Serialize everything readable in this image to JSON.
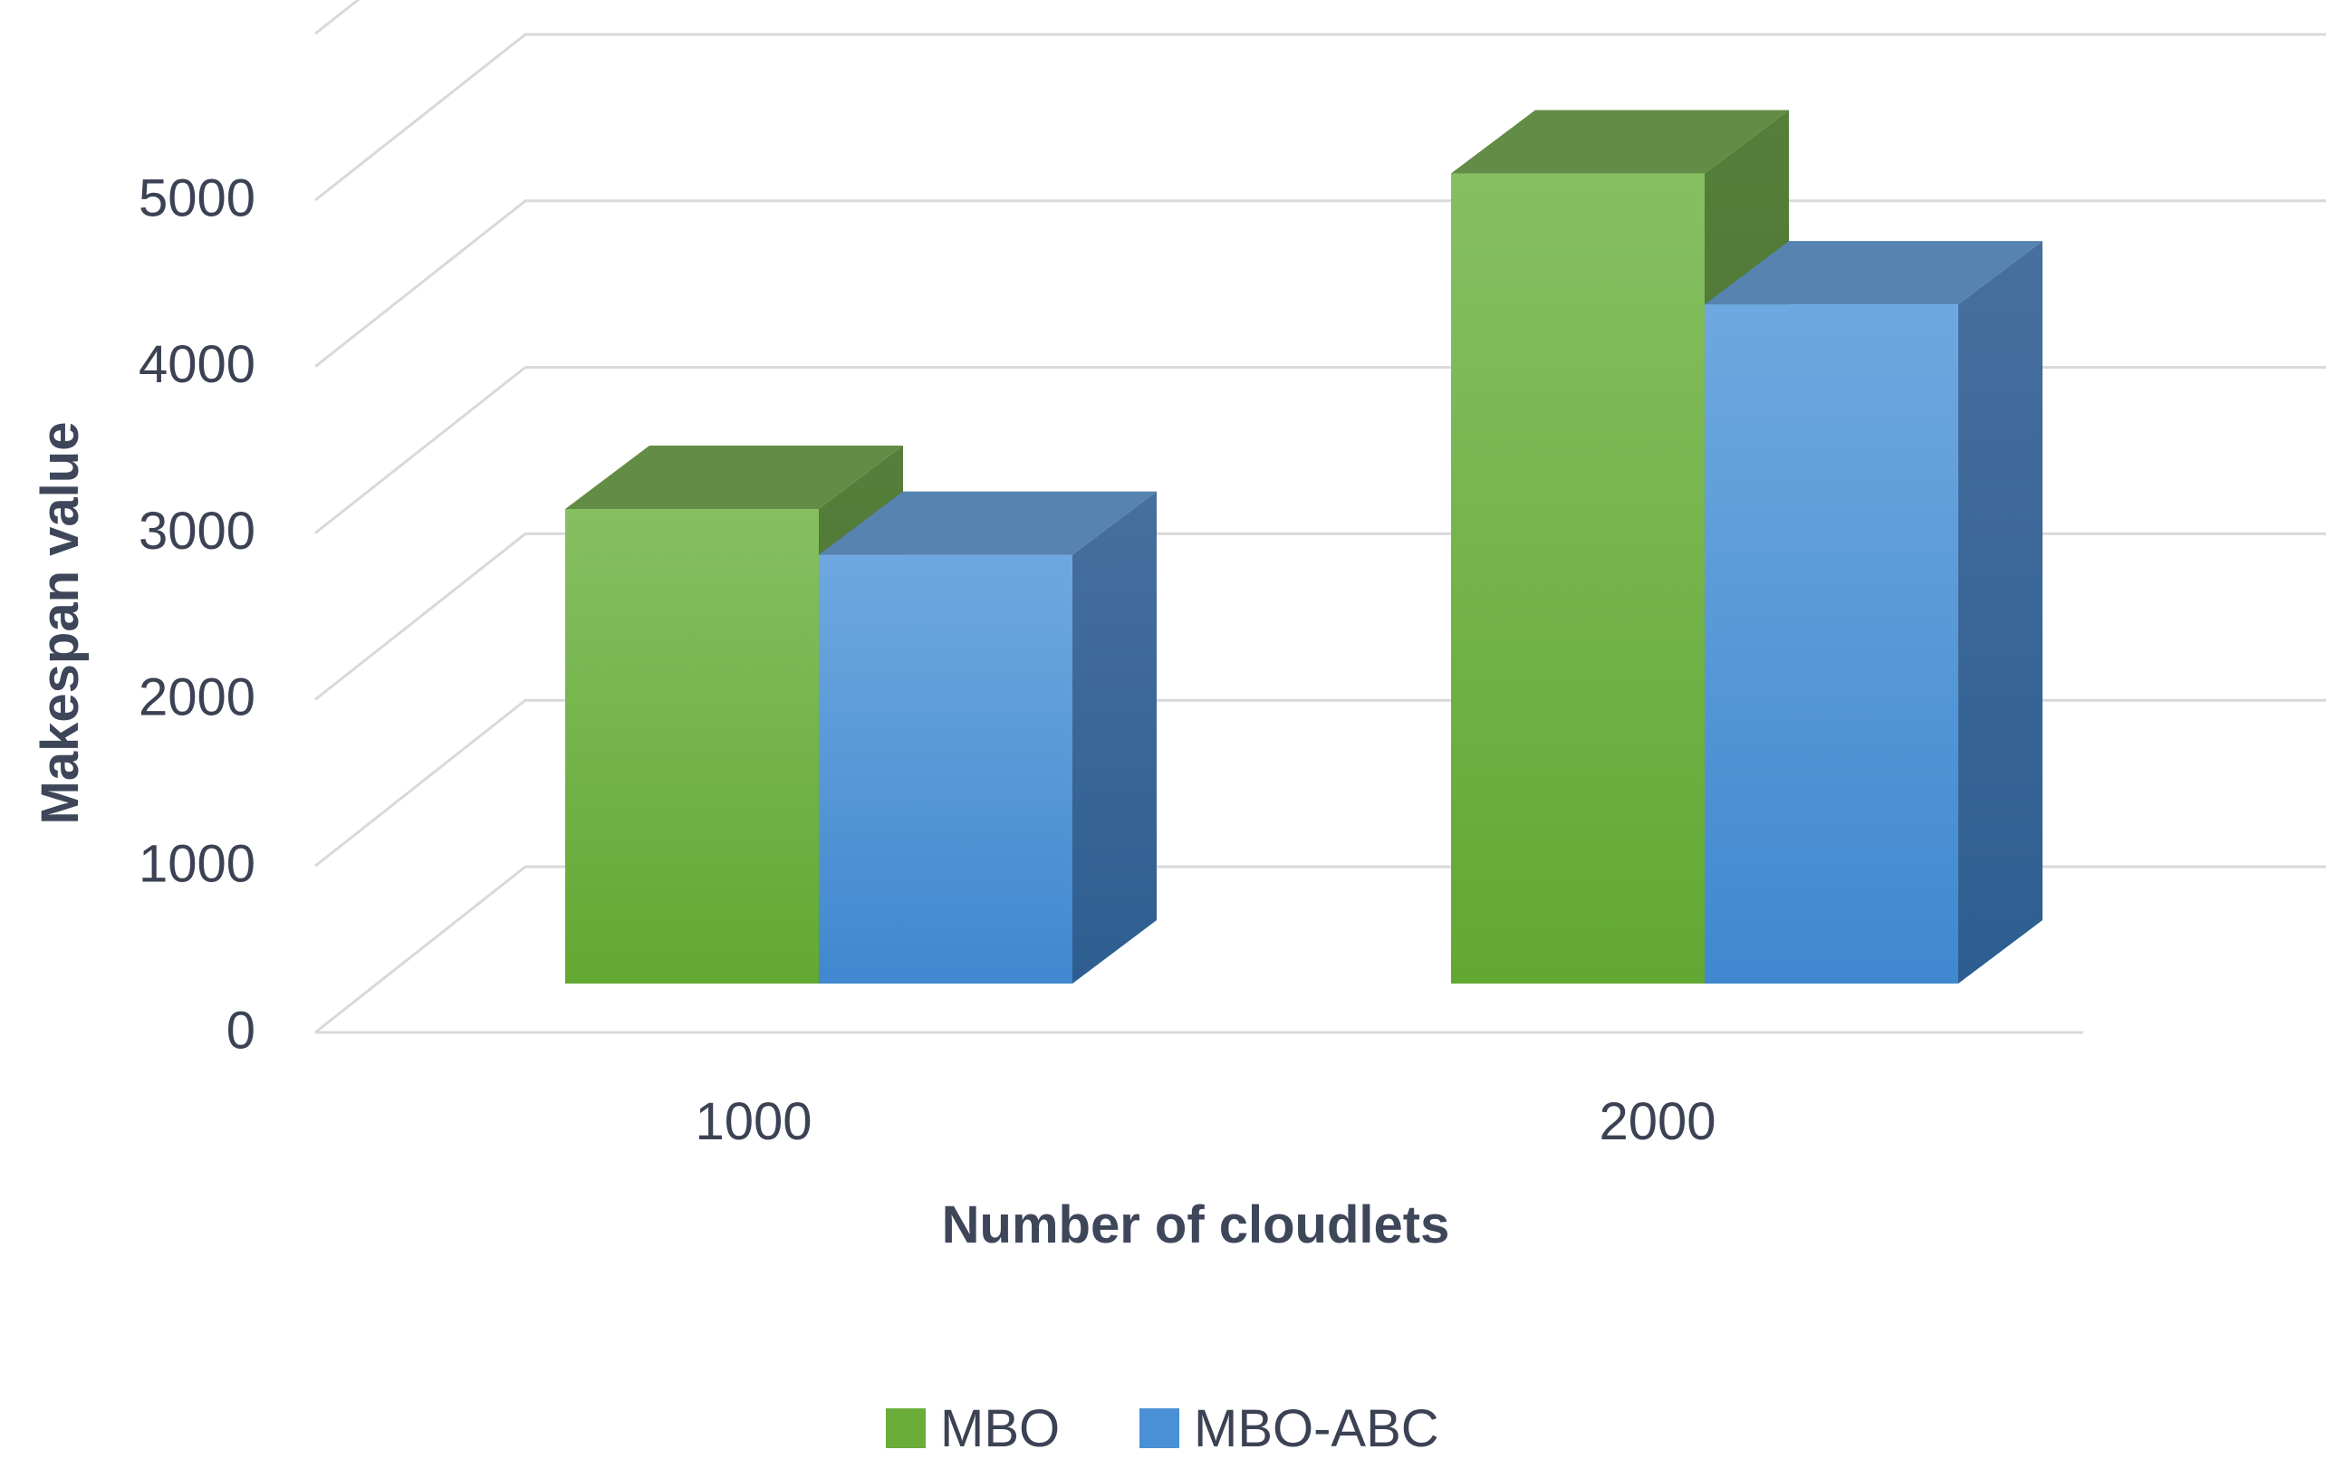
{
  "chart_data": {
    "type": "bar",
    "style": "3d-clustered-column",
    "categories": [
      "1000",
      "2000"
    ],
    "series": [
      {
        "name": "MBO",
        "values": [
          2900,
          4950
        ],
        "color": "#6aad3a"
      },
      {
        "name": "MBO-ABC",
        "values": [
          2620,
          4150
        ],
        "color": "#4a90d6"
      }
    ],
    "xlabel": "Number of cloudlets",
    "ylabel": "Makespan value",
    "ylim": [
      0,
      5000
    ],
    "yticks": [
      "0",
      "1000",
      "2000",
      "3000",
      "4000",
      "5000"
    ],
    "grid": true,
    "legend_position": "bottom"
  }
}
